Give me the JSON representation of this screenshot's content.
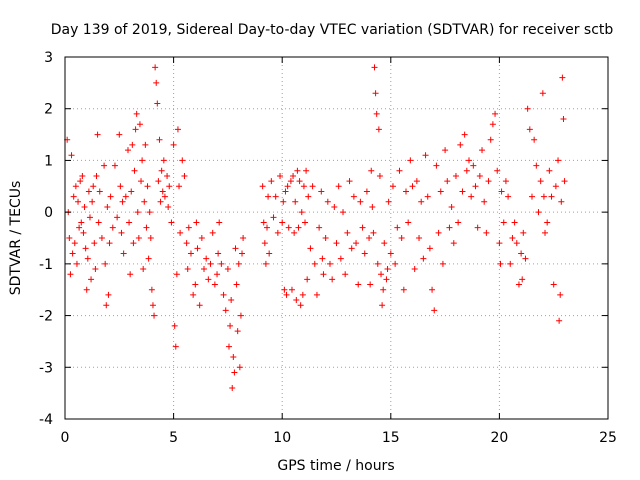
{
  "chart_data": {
    "type": "scatter",
    "title": "Day 139 of 2019, Sidereal Day-to-day VTEC variation (SDTVAR) for receiver sctb",
    "xlabel": "GPS time / hours",
    "ylabel": "SDTVAR / TECUs",
    "xlim": [
      0,
      25
    ],
    "ylim": [
      -4,
      3
    ],
    "xticks": [
      0,
      5,
      10,
      15,
      20,
      25
    ],
    "yticks": [
      -4,
      -3,
      -2,
      -1,
      0,
      1,
      2,
      3
    ],
    "grid": true,
    "marker": "+",
    "marker_color": "#ff0000",
    "series": [
      {
        "name": "SDTVAR",
        "color": "#ff0000",
        "points": [
          [
            0.1,
            1.4
          ],
          [
            0.15,
            0.0
          ],
          [
            0.2,
            -0.5
          ],
          [
            0.25,
            -1.2
          ],
          [
            0.3,
            1.1
          ],
          [
            0.35,
            -0.8
          ],
          [
            0.4,
            0.3
          ],
          [
            0.45,
            -0.6
          ],
          [
            0.5,
            0.5
          ],
          [
            0.55,
            -1.0
          ],
          [
            0.6,
            0.2
          ],
          [
            0.65,
            -0.3
          ],
          [
            0.7,
            0.6
          ],
          [
            0.75,
            -0.2
          ],
          [
            0.8,
            0.7
          ],
          [
            0.85,
            -0.4
          ],
          [
            0.9,
            0.1
          ],
          [
            0.95,
            -0.7
          ],
          [
            1.0,
            -1.5
          ],
          [
            1.05,
            -0.9
          ],
          [
            1.1,
            0.4
          ],
          [
            1.15,
            -0.1
          ],
          [
            1.2,
            -1.3
          ],
          [
            1.25,
            0.2
          ],
          [
            1.3,
            0.5
          ],
          [
            1.35,
            -0.6
          ],
          [
            1.4,
            -1.1
          ],
          [
            1.45,
            0.7
          ],
          [
            1.5,
            1.5
          ],
          [
            1.55,
            -0.2
          ],
          [
            1.6,
            0.4
          ],
          [
            1.7,
            -0.5
          ],
          [
            1.8,
            0.9
          ],
          [
            1.85,
            -1.0
          ],
          [
            1.9,
            -1.8
          ],
          [
            1.95,
            0.1
          ],
          [
            2.0,
            -1.6
          ],
          [
            2.05,
            -0.6
          ],
          [
            2.1,
            0.3
          ],
          [
            2.2,
            -0.3
          ],
          [
            2.3,
            0.9
          ],
          [
            2.4,
            -0.1
          ],
          [
            2.5,
            1.5
          ],
          [
            2.55,
            0.5
          ],
          [
            2.6,
            -0.4
          ],
          [
            2.65,
            0.2
          ],
          [
            2.7,
            -0.8
          ],
          [
            2.8,
            0.3
          ],
          [
            2.9,
            1.2
          ],
          [
            2.95,
            -0.2
          ],
          [
            3.0,
            -1.2
          ],
          [
            3.05,
            0.4
          ],
          [
            3.1,
            1.3
          ],
          [
            3.15,
            -0.6
          ],
          [
            3.2,
            0.8
          ],
          [
            3.25,
            1.6
          ],
          [
            3.3,
            1.9
          ],
          [
            3.35,
            0.0
          ],
          [
            3.4,
            -0.5
          ],
          [
            3.45,
            1.7
          ],
          [
            3.5,
            0.6
          ],
          [
            3.55,
            1.0
          ],
          [
            3.6,
            -1.1
          ],
          [
            3.65,
            0.2
          ],
          [
            3.7,
            1.3
          ],
          [
            3.75,
            -0.3
          ],
          [
            3.8,
            0.5
          ],
          [
            3.85,
            -0.9
          ],
          [
            3.9,
            0.0
          ],
          [
            3.95,
            -0.5
          ],
          [
            4.0,
            -1.5
          ],
          [
            4.05,
            -1.8
          ],
          [
            4.1,
            -2.0
          ],
          [
            4.15,
            2.8
          ],
          [
            4.2,
            2.5
          ],
          [
            4.25,
            2.1
          ],
          [
            4.3,
            0.6
          ],
          [
            4.35,
            1.4
          ],
          [
            4.4,
            0.2
          ],
          [
            4.45,
            0.8
          ],
          [
            4.5,
            0.4
          ],
          [
            4.55,
            1.0
          ],
          [
            4.6,
            0.3
          ],
          [
            4.7,
            0.7
          ],
          [
            4.75,
            0.1
          ],
          [
            4.8,
            0.5
          ],
          [
            4.9,
            -0.2
          ],
          [
            5.0,
            1.3
          ],
          [
            5.05,
            -2.2
          ],
          [
            5.1,
            -2.6
          ],
          [
            5.15,
            -1.2
          ],
          [
            5.2,
            1.6
          ],
          [
            5.25,
            0.5
          ],
          [
            5.3,
            -0.4
          ],
          [
            5.4,
            1.0
          ],
          [
            5.5,
            0.7
          ],
          [
            5.6,
            -0.6
          ],
          [
            5.65,
            -1.1
          ],
          [
            5.7,
            -0.3
          ],
          [
            5.8,
            -0.8
          ],
          [
            5.9,
            -1.6
          ],
          [
            6.0,
            -1.4
          ],
          [
            6.05,
            -0.2
          ],
          [
            6.1,
            -0.7
          ],
          [
            6.2,
            -1.8
          ],
          [
            6.3,
            -0.5
          ],
          [
            6.4,
            -1.1
          ],
          [
            6.5,
            -0.9
          ],
          [
            6.6,
            -1.3
          ],
          [
            6.7,
            -1.0
          ],
          [
            6.8,
            -0.4
          ],
          [
            6.9,
            -1.4
          ],
          [
            7.0,
            -1.2
          ],
          [
            7.05,
            -0.8
          ],
          [
            7.1,
            -0.2
          ],
          [
            7.2,
            -1.0
          ],
          [
            7.3,
            -1.6
          ],
          [
            7.4,
            -1.9
          ],
          [
            7.5,
            -1.1
          ],
          [
            7.55,
            -2.6
          ],
          [
            7.6,
            -2.2
          ],
          [
            7.65,
            -1.7
          ],
          [
            7.7,
            -3.4
          ],
          [
            7.75,
            -2.8
          ],
          [
            7.8,
            -3.1
          ],
          [
            7.85,
            -0.7
          ],
          [
            7.9,
            -1.4
          ],
          [
            7.95,
            -2.3
          ],
          [
            8.0,
            -1.0
          ],
          [
            8.05,
            -3.0
          ],
          [
            8.1,
            -2.0
          ],
          [
            8.15,
            -0.8
          ],
          [
            8.2,
            -0.5
          ],
          [
            9.1,
            0.5
          ],
          [
            9.15,
            -0.2
          ],
          [
            9.2,
            -0.6
          ],
          [
            9.25,
            -1.0
          ],
          [
            9.3,
            -0.3
          ],
          [
            9.35,
            0.3
          ],
          [
            9.4,
            -0.8
          ],
          [
            9.5,
            0.6
          ],
          [
            9.6,
            -0.1
          ],
          [
            9.7,
            0.3
          ],
          [
            9.8,
            -0.4
          ],
          [
            9.9,
            0.7
          ],
          [
            10.0,
            -0.2
          ],
          [
            10.05,
            0.2
          ],
          [
            10.1,
            -1.5
          ],
          [
            10.15,
            0.4
          ],
          [
            10.2,
            -1.6
          ],
          [
            10.25,
            0.5
          ],
          [
            10.3,
            -0.3
          ],
          [
            10.4,
            0.6
          ],
          [
            10.45,
            -1.5
          ],
          [
            10.5,
            0.7
          ],
          [
            10.55,
            -0.4
          ],
          [
            10.6,
            0.2
          ],
          [
            10.65,
            -1.7
          ],
          [
            10.7,
            0.8
          ],
          [
            10.75,
            -0.3
          ],
          [
            10.8,
            0.6
          ],
          [
            10.85,
            -1.8
          ],
          [
            10.9,
            0.0
          ],
          [
            10.95,
            -1.6
          ],
          [
            11.0,
            0.5
          ],
          [
            11.05,
            -0.2
          ],
          [
            11.1,
            0.8
          ],
          [
            11.15,
            -1.3
          ],
          [
            11.2,
            0.3
          ],
          [
            11.3,
            -0.7
          ],
          [
            11.4,
            0.5
          ],
          [
            11.5,
            -1.0
          ],
          [
            11.6,
            -1.6
          ],
          [
            11.7,
            -0.3
          ],
          [
            11.8,
            0.4
          ],
          [
            11.85,
            -0.9
          ],
          [
            11.9,
            -1.2
          ],
          [
            12.0,
            -0.5
          ],
          [
            12.1,
            0.2
          ],
          [
            12.2,
            -1.0
          ],
          [
            12.3,
            -1.3
          ],
          [
            12.4,
            0.1
          ],
          [
            12.5,
            -0.6
          ],
          [
            12.6,
            0.5
          ],
          [
            12.7,
            -0.9
          ],
          [
            12.8,
            0.0
          ],
          [
            12.9,
            -1.2
          ],
          [
            13.0,
            -0.4
          ],
          [
            13.1,
            0.6
          ],
          [
            13.2,
            -0.7
          ],
          [
            13.3,
            0.3
          ],
          [
            13.4,
            -0.6
          ],
          [
            13.5,
            -1.4
          ],
          [
            13.6,
            0.2
          ],
          [
            13.7,
            -0.3
          ],
          [
            13.8,
            -0.8
          ],
          [
            13.9,
            0.4
          ],
          [
            14.0,
            -0.5
          ],
          [
            14.05,
            -1.4
          ],
          [
            14.1,
            0.8
          ],
          [
            14.15,
            0.1
          ],
          [
            14.2,
            -0.4
          ],
          [
            14.25,
            2.8
          ],
          [
            14.3,
            2.3
          ],
          [
            14.35,
            1.9
          ],
          [
            14.4,
            -1.0
          ],
          [
            14.45,
            1.6
          ],
          [
            14.5,
            0.7
          ],
          [
            14.55,
            -1.2
          ],
          [
            14.6,
            -1.8
          ],
          [
            14.65,
            -1.5
          ],
          [
            14.7,
            -0.6
          ],
          [
            14.8,
            -1.3
          ],
          [
            14.85,
            -1.1
          ],
          [
            14.9,
            0.2
          ],
          [
            15.0,
            -0.8
          ],
          [
            15.1,
            0.5
          ],
          [
            15.2,
            -1.0
          ],
          [
            15.3,
            -0.3
          ],
          [
            15.4,
            0.8
          ],
          [
            15.5,
            -0.5
          ],
          [
            15.6,
            -1.5
          ],
          [
            15.7,
            0.4
          ],
          [
            15.8,
            -0.2
          ],
          [
            15.9,
            1.0
          ],
          [
            16.0,
            0.5
          ],
          [
            16.1,
            -1.1
          ],
          [
            16.2,
            0.6
          ],
          [
            16.3,
            -0.5
          ],
          [
            16.4,
            0.2
          ],
          [
            16.5,
            -0.9
          ],
          [
            16.6,
            1.1
          ],
          [
            16.7,
            0.3
          ],
          [
            16.8,
            -0.7
          ],
          [
            16.9,
            -1.5
          ],
          [
            17.0,
            -1.9
          ],
          [
            17.1,
            0.9
          ],
          [
            17.2,
            -0.4
          ],
          [
            17.3,
            0.4
          ],
          [
            17.4,
            -1.0
          ],
          [
            17.5,
            1.2
          ],
          [
            17.6,
            0.6
          ],
          [
            17.7,
            -0.3
          ],
          [
            17.8,
            0.1
          ],
          [
            17.9,
            -0.6
          ],
          [
            18.0,
            0.7
          ],
          [
            18.1,
            -0.2
          ],
          [
            18.2,
            1.3
          ],
          [
            18.3,
            0.4
          ],
          [
            18.4,
            1.5
          ],
          [
            18.5,
            0.8
          ],
          [
            18.6,
            1.0
          ],
          [
            18.7,
            0.3
          ],
          [
            18.8,
            0.9
          ],
          [
            18.9,
            0.5
          ],
          [
            19.0,
            -0.3
          ],
          [
            19.1,
            0.7
          ],
          [
            19.2,
            1.2
          ],
          [
            19.3,
            0.2
          ],
          [
            19.4,
            -0.4
          ],
          [
            19.5,
            0.6
          ],
          [
            19.6,
            1.4
          ],
          [
            19.7,
            1.7
          ],
          [
            19.8,
            1.9
          ],
          [
            19.9,
            0.8
          ],
          [
            20.0,
            -0.6
          ],
          [
            20.05,
            -1.0
          ],
          [
            20.1,
            0.4
          ],
          [
            20.2,
            -0.2
          ],
          [
            20.3,
            0.6
          ],
          [
            20.4,
            0.3
          ],
          [
            20.5,
            -1.0
          ],
          [
            20.6,
            -0.5
          ],
          [
            20.7,
            -0.2
          ],
          [
            20.8,
            -0.6
          ],
          [
            20.9,
            -1.4
          ],
          [
            21.0,
            -0.8
          ],
          [
            21.05,
            -1.3
          ],
          [
            21.1,
            -0.4
          ],
          [
            21.2,
            -0.9
          ],
          [
            21.3,
            2.0
          ],
          [
            21.4,
            1.6
          ],
          [
            21.5,
            0.3
          ],
          [
            21.6,
            1.4
          ],
          [
            21.7,
            0.9
          ],
          [
            21.8,
            0.0
          ],
          [
            21.9,
            0.6
          ],
          [
            22.0,
            2.3
          ],
          [
            22.05,
            0.3
          ],
          [
            22.1,
            -0.4
          ],
          [
            22.2,
            -0.2
          ],
          [
            22.3,
            0.8
          ],
          [
            22.4,
            0.3
          ],
          [
            22.5,
            -1.4
          ],
          [
            22.6,
            0.5
          ],
          [
            22.7,
            1.0
          ],
          [
            22.75,
            -2.1
          ],
          [
            22.8,
            -1.6
          ],
          [
            22.85,
            0.2
          ],
          [
            22.9,
            2.6
          ],
          [
            22.95,
            1.8
          ],
          [
            23.0,
            0.6
          ]
        ]
      }
    ]
  }
}
